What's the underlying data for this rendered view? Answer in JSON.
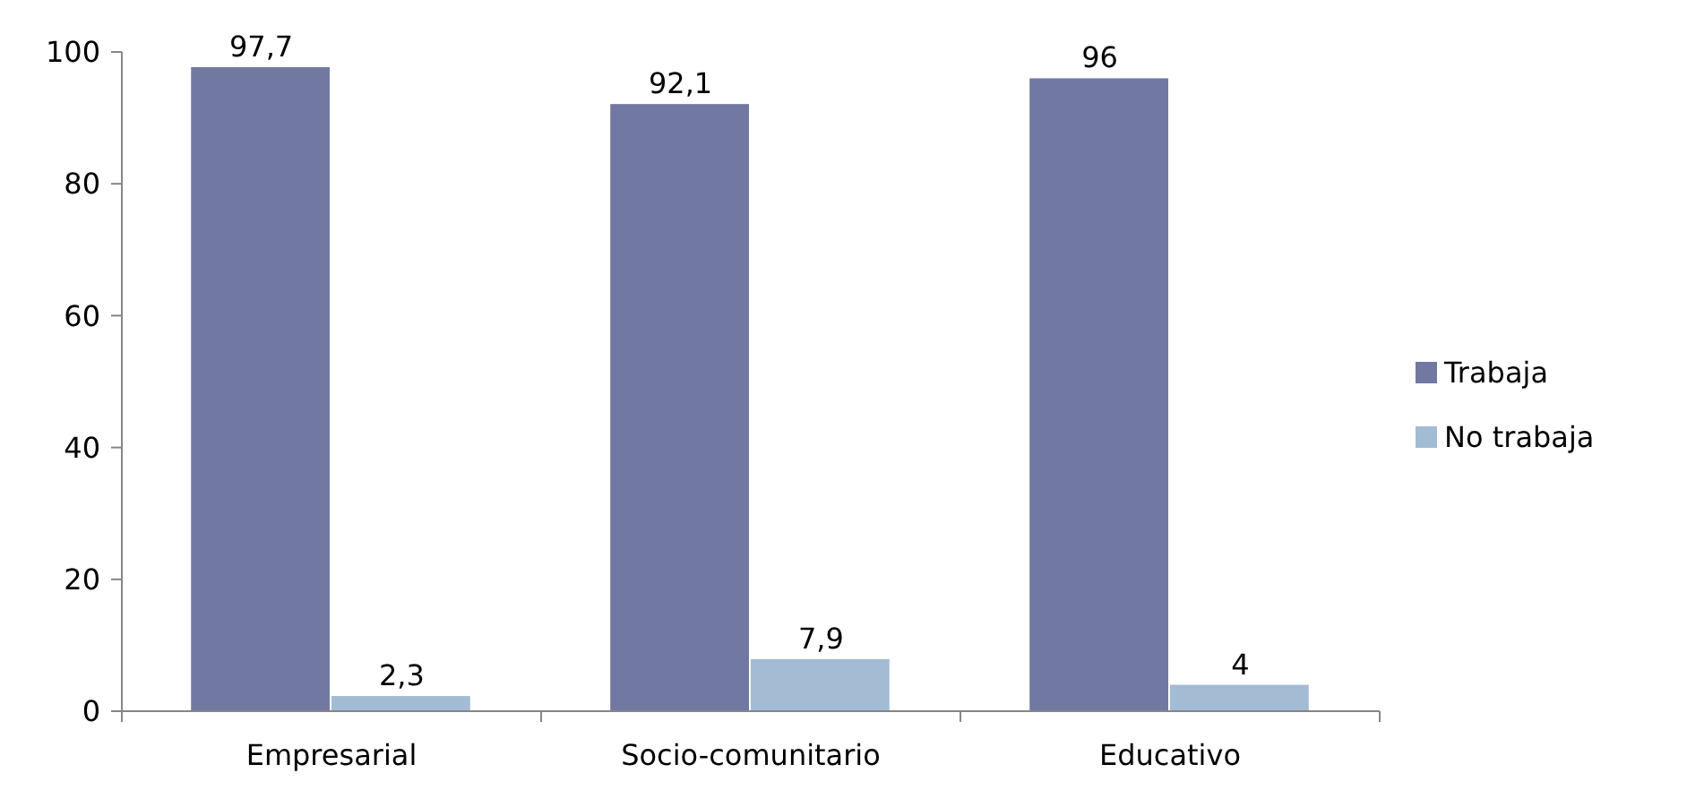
{
  "chart_data": {
    "type": "bar",
    "categories": [
      "Empresarial",
      "Socio-comunitario",
      "Educativo"
    ],
    "series": [
      {
        "name": "Trabaja",
        "color": "#7179a3",
        "values": [
          97.7,
          92.1,
          96
        ],
        "value_labels": [
          "97,7",
          "92,1",
          "96"
        ]
      },
      {
        "name": "No trabaja",
        "color": "#a3bbd3",
        "values": [
          2.3,
          7.9,
          4
        ],
        "value_labels": [
          "2,3",
          "7,9",
          "4"
        ]
      }
    ],
    "ylim": [
      0,
      100
    ],
    "yticks": [
      0,
      20,
      40,
      60,
      80,
      100
    ],
    "grid": false,
    "legend": "right"
  }
}
